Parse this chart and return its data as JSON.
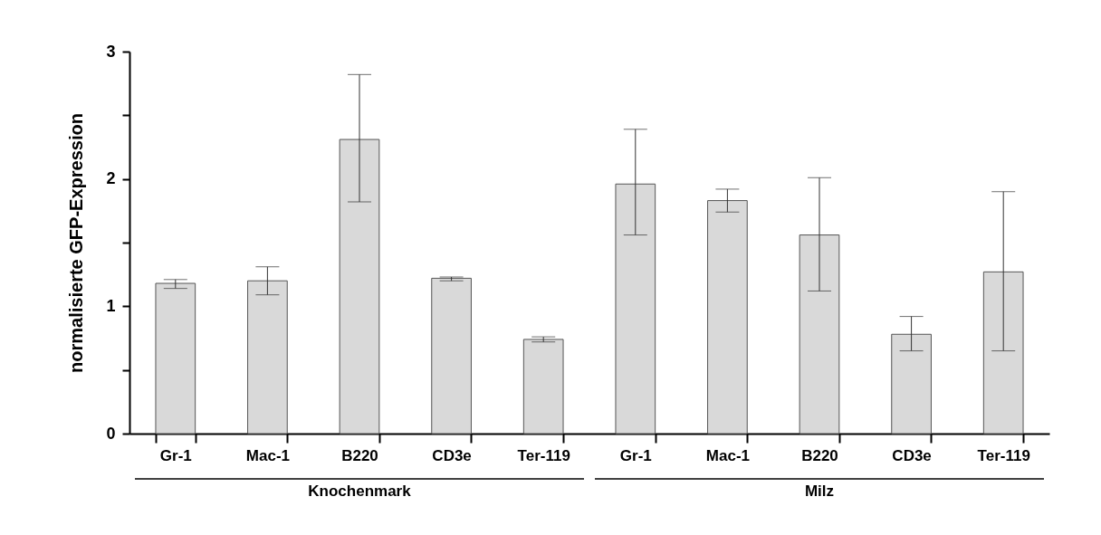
{
  "chart_data": {
    "type": "bar",
    "ylabel": "normalisierte GFP-Expression",
    "categories": [
      "Gr-1",
      "Mac-1",
      "B220",
      "CD3e",
      "Ter-119",
      "Gr-1",
      "Mac-1",
      "B220",
      "CD3e",
      "Ter-119"
    ],
    "values": [
      1.18,
      1.2,
      2.31,
      1.22,
      0.74,
      1.96,
      1.83,
      1.56,
      0.78,
      1.27
    ],
    "errors": [
      [
        1.14,
        1.21
      ],
      [
        1.09,
        1.31
      ],
      [
        1.82,
        2.82
      ],
      [
        1.2,
        1.23
      ],
      [
        0.72,
        0.76
      ],
      [
        1.56,
        2.39
      ],
      [
        1.74,
        1.92
      ],
      [
        1.12,
        2.01
      ],
      [
        0.65,
        0.92
      ],
      [
        0.65,
        1.9
      ]
    ],
    "color": "#d9d9d9",
    "ylim": [
      0,
      3
    ],
    "yticks": [
      0,
      {
        "value": 0.5,
        "label": null
      },
      1,
      {
        "value": 1.5,
        "label": null
      },
      2,
      {
        "value": 2.5,
        "label": null
      },
      3
    ],
    "annotations": [
      "Knochenmark",
      "Milz"
    ],
    "grid": false
  }
}
